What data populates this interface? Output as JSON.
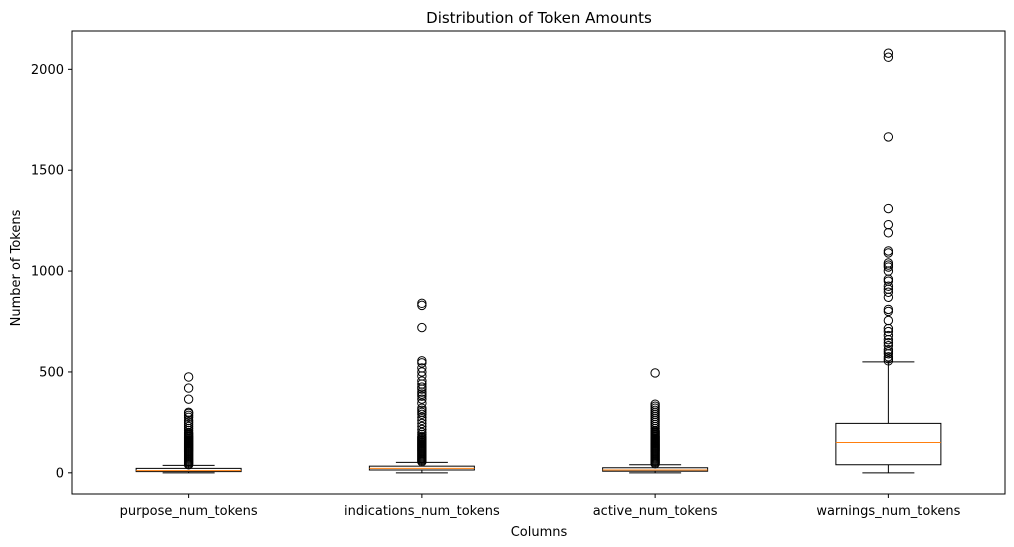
{
  "chart_data": {
    "type": "boxplot",
    "title": "Distribution of Token Amounts",
    "xlabel": "Columns",
    "ylabel": "Number of Tokens",
    "ylim": [
      -105,
      2190
    ],
    "yticks": [
      0,
      500,
      1000,
      1500,
      2000
    ],
    "ytick_labels": [
      "0",
      "500",
      "1000",
      "1500",
      "2000"
    ],
    "grid": false,
    "colors": {
      "box": "#000000",
      "median": "#ff7f0e",
      "flier": "#000000",
      "background": "#ffffff"
    },
    "series": [
      {
        "category": "purpose_num_tokens",
        "whisker_low": 0,
        "q1": 6,
        "median": 11,
        "q3": 22,
        "whisker_high": 37,
        "fliers": [
          40,
          45,
          50,
          55,
          60,
          65,
          70,
          75,
          80,
          85,
          90,
          95,
          100,
          105,
          110,
          115,
          120,
          125,
          130,
          135,
          140,
          145,
          150,
          155,
          160,
          165,
          170,
          175,
          180,
          185,
          190,
          195,
          200,
          210,
          220,
          230,
          240,
          250,
          260,
          275,
          285,
          295,
          300,
          365,
          420,
          475
        ]
      },
      {
        "category": "indications_num_tokens",
        "whisker_low": 0,
        "q1": 14,
        "median": 22,
        "q3": 33,
        "whisker_high": 52,
        "fliers": [
          55,
          60,
          65,
          70,
          75,
          80,
          85,
          90,
          95,
          100,
          105,
          110,
          115,
          120,
          125,
          130,
          135,
          140,
          145,
          150,
          155,
          160,
          165,
          170,
          175,
          180,
          190,
          200,
          215,
          230,
          245,
          260,
          275,
          290,
          300,
          310,
          320,
          345,
          365,
          380,
          390,
          400,
          415,
          425,
          440,
          455,
          480,
          500,
          520,
          545,
          555,
          720,
          830,
          840
        ]
      },
      {
        "category": "active_num_tokens",
        "whisker_low": 0,
        "q1": 8,
        "median": 14,
        "q3": 25,
        "whisker_high": 40,
        "fliers": [
          45,
          50,
          55,
          60,
          65,
          70,
          75,
          80,
          85,
          90,
          95,
          100,
          105,
          110,
          115,
          120,
          125,
          130,
          135,
          140,
          145,
          150,
          155,
          160,
          165,
          170,
          175,
          180,
          185,
          190,
          195,
          200,
          205,
          210,
          220,
          230,
          240,
          250,
          260,
          270,
          280,
          290,
          300,
          310,
          320,
          330,
          340,
          495
        ]
      },
      {
        "category": "warnings_num_tokens",
        "whisker_low": 0,
        "q1": 40,
        "median": 150,
        "q3": 245,
        "whisker_high": 550,
        "fliers": [
          555,
          565,
          575,
          590,
          600,
          610,
          630,
          645,
          660,
          680,
          700,
          715,
          755,
          800,
          810,
          870,
          895,
          910,
          925,
          950,
          960,
          1000,
          1020,
          1030,
          1040,
          1090,
          1100,
          1190,
          1230,
          1310,
          1665,
          2060,
          2080
        ]
      }
    ]
  }
}
